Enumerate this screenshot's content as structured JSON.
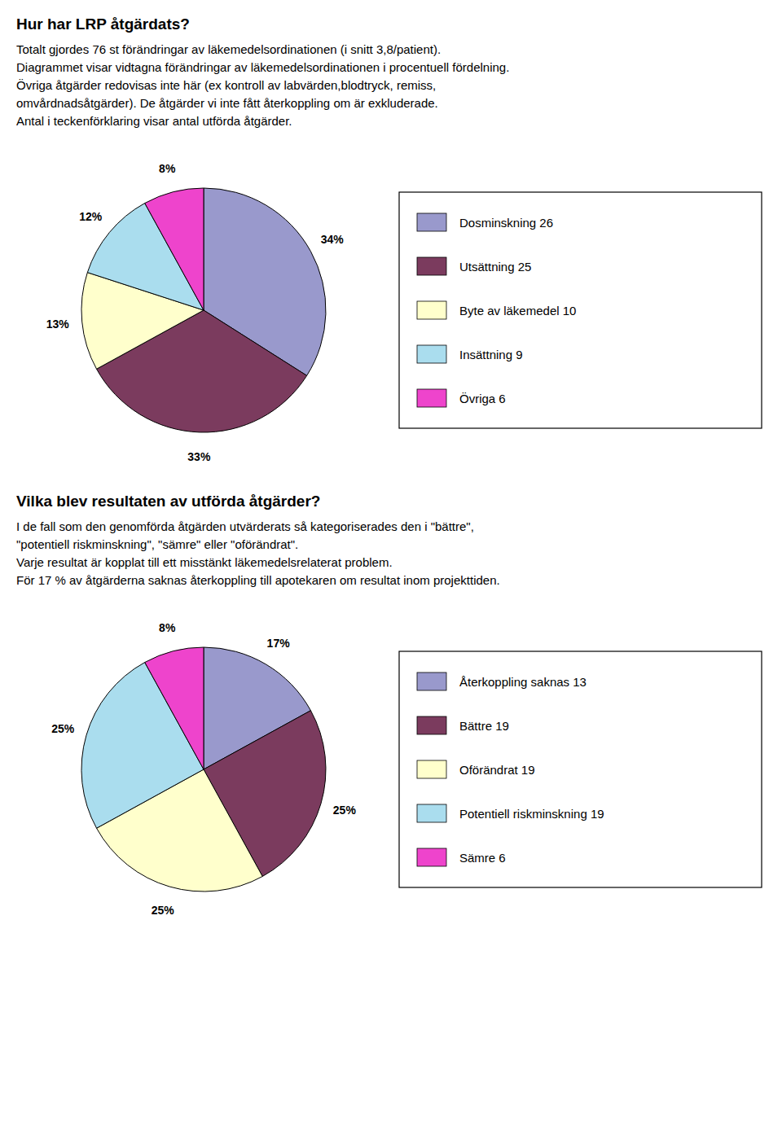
{
  "chart_data": [
    {
      "type": "pie",
      "title": "Hur har LRP åtgärdats?",
      "annotations": [
        "Totalt gjordes 76 st förändringar av läkemedelsordinationen (i snitt 3,8/patient).",
        "Diagrammet visar vidtagna förändringar av läkemedelsordinationen i procentuell fördelning.",
        "Övriga åtgärder redovisas inte här (ex kontroll av labvärden,blodtryck, remiss,",
        "omvårdnadsåtgärder). De åtgärder vi inte fått återkoppling om är exkluderade.",
        "Antal i teckenförklaring visar antal utförda åtgärder."
      ],
      "categories": [
        "Dosminskning 26",
        "Utsättning 25",
        "Byte av läkemedel 10",
        "Insättning 9",
        "Övriga 6"
      ],
      "values": [
        34,
        33,
        13,
        12,
        8
      ],
      "value_labels": [
        "34%",
        "33%",
        "13%",
        "12%",
        "8%"
      ],
      "colors": [
        "#9999cc",
        "#7b3b5e",
        "#ffffcc",
        "#aaddee",
        "#ee44cc"
      ],
      "data_labels": true,
      "legend": "right"
    },
    {
      "type": "pie",
      "title": "Vilka blev resultaten av utförda åtgärder?",
      "annotations": [
        "I de fall som den genomförda åtgärden utvärderats så kategoriserades den i \"bättre\",",
        "\"potentiell riskminskning\", \"sämre\" eller \"oförändrat\".",
        "Varje resultat är kopplat till ett misstänkt läkemedelsrelaterat problem.",
        "För 17 % av åtgärderna saknas återkoppling till apotekaren om resultat inom projekttiden."
      ],
      "categories": [
        "Återkoppling saknas 13",
        "Bättre 19",
        "Oförändrat 19",
        "Potentiell riskminskning 19",
        "Sämre 6"
      ],
      "values": [
        17,
        25,
        25,
        25,
        8
      ],
      "value_labels": [
        "17%",
        "25%",
        "25%",
        "25%",
        "8%"
      ],
      "colors": [
        "#9999cc",
        "#7b3b5e",
        "#ffffcc",
        "#aaddee",
        "#ee44cc"
      ],
      "data_labels": true,
      "legend": "right"
    }
  ]
}
